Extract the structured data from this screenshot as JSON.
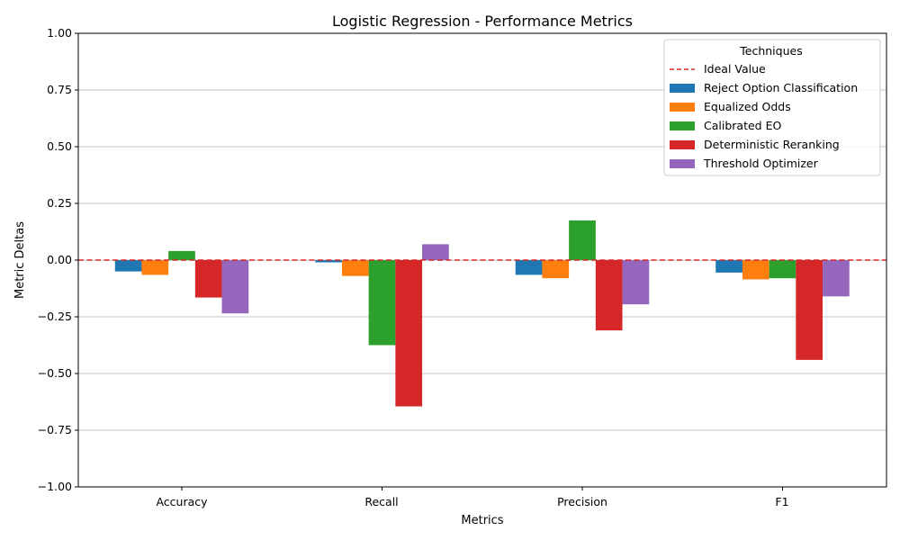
{
  "chart_data": {
    "type": "bar",
    "title": "Logistic Regression - Performance Metrics",
    "xlabel": "Metrics",
    "ylabel": "Metric Deltas",
    "categories": [
      "Accuracy",
      "Recall",
      "Precision",
      "F1"
    ],
    "ylim": [
      -1.0,
      1.0
    ],
    "yticks": [
      "−1.00",
      "−0.75",
      "−0.50",
      "−0.25",
      "0.00",
      "0.25",
      "0.50",
      "0.75",
      "1.00"
    ],
    "ytick_values": [
      -1.0,
      -0.75,
      -0.5,
      -0.25,
      0.0,
      0.25,
      0.5,
      0.75,
      1.0
    ],
    "grid": "y",
    "legend": {
      "title": "Techniques",
      "placement": "top-right"
    },
    "reference_line": {
      "name": "Ideal Value",
      "value": 0.0,
      "color": "#d62728",
      "style": "dashed"
    },
    "series": [
      {
        "name": "Reject Option Classification",
        "color": "#1f77b4",
        "values": [
          -0.05,
          -0.01,
          -0.065,
          -0.055
        ]
      },
      {
        "name": "Equalized Odds",
        "color": "#ff7f0e",
        "values": [
          -0.065,
          -0.07,
          -0.08,
          -0.085
        ]
      },
      {
        "name": "Calibrated EO",
        "color": "#2ca02c",
        "values": [
          0.04,
          -0.375,
          0.175,
          -0.08
        ]
      },
      {
        "name": "Deterministic Reranking",
        "color": "#d62728",
        "values": [
          -0.165,
          -0.645,
          -0.31,
          -0.44
        ]
      },
      {
        "name": "Threshold Optimizer",
        "color": "#9467bd",
        "values": [
          -0.235,
          0.07,
          -0.195,
          -0.16
        ]
      }
    ]
  }
}
